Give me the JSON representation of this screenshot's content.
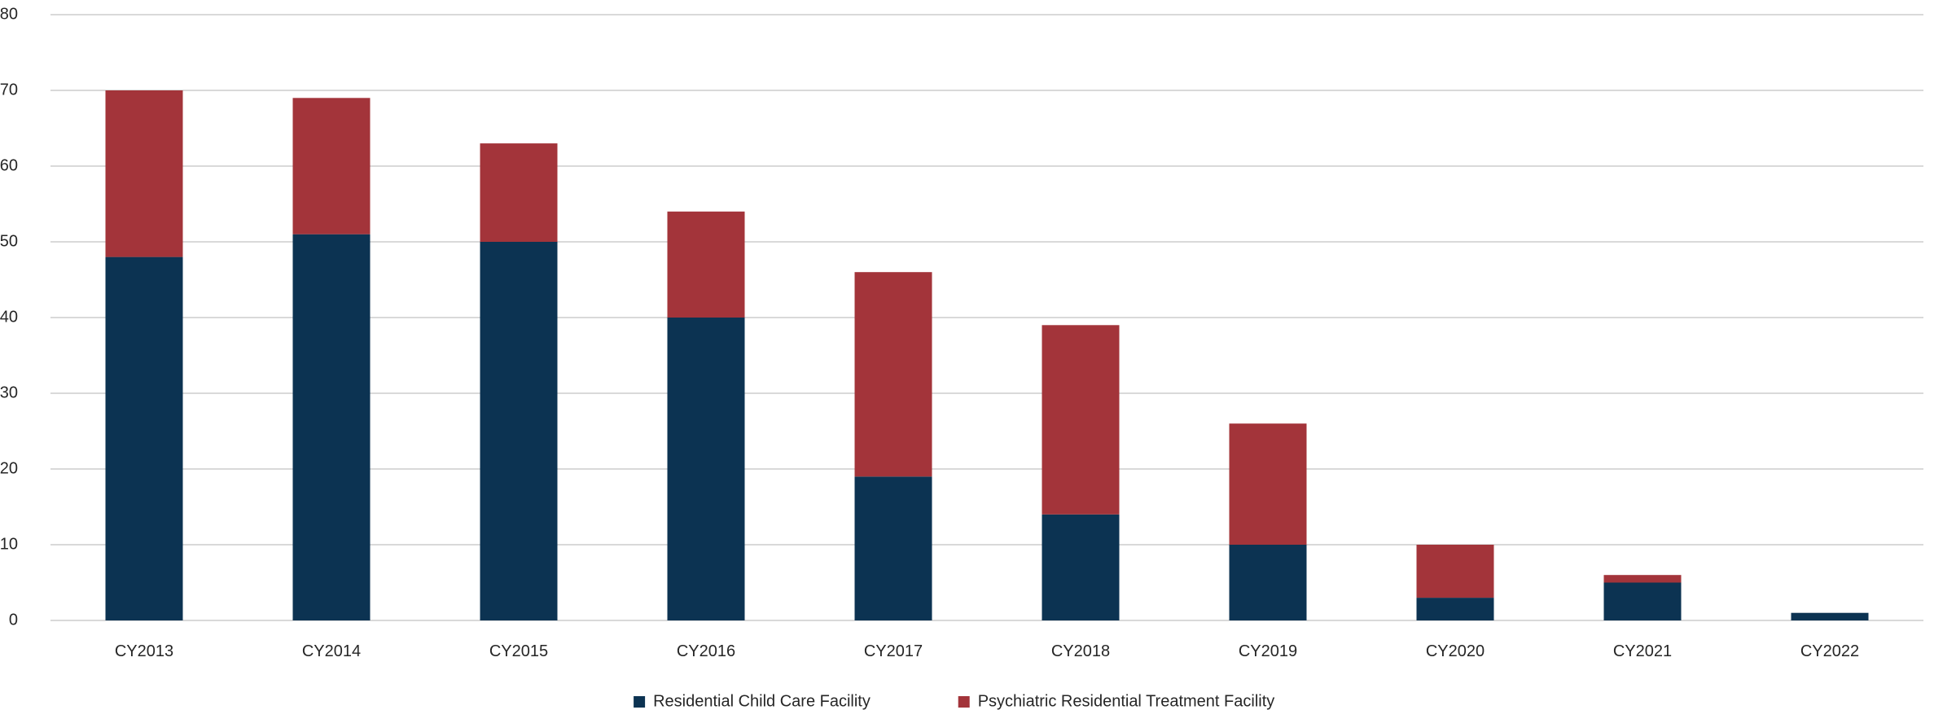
{
  "chart_data": {
    "type": "bar",
    "stacked": true,
    "categories": [
      "CY2013",
      "CY2014",
      "CY2015",
      "CY2016",
      "CY2017",
      "CY2018",
      "CY2019",
      "CY2020",
      "CY2021",
      "CY2022"
    ],
    "series": [
      {
        "name": "Residential Child Care Facility",
        "color": "#0c3352",
        "values": [
          48,
          51,
          50,
          40,
          19,
          14,
          10,
          3,
          5,
          1
        ]
      },
      {
        "name": "Psychiatric Residential Treatment Facility",
        "color": "#a3343a",
        "values": [
          22,
          18,
          13,
          14,
          27,
          25,
          16,
          7,
          1,
          0
        ]
      }
    ],
    "title": "",
    "xlabel": "",
    "ylabel": "",
    "ylim": [
      0,
      80
    ],
    "yticks": [
      "0",
      "10",
      "20",
      "30",
      "40",
      "50",
      "60",
      "70",
      "80"
    ],
    "grid": true,
    "legend_position": "bottom-center"
  }
}
